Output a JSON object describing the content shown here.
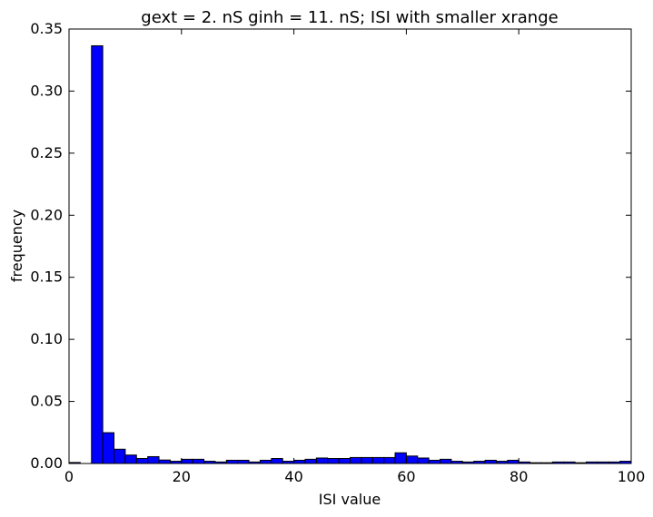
{
  "chart_data": {
    "type": "bar",
    "title": "gext = 2. nS ginh = 11. nS; ISI with smaller xrange",
    "xlabel": "ISI value",
    "ylabel": "frequency",
    "xlim": [
      0,
      100
    ],
    "ylim": [
      0,
      0.35
    ],
    "xticks": [
      0,
      20,
      40,
      60,
      80,
      100
    ],
    "xtick_labels": [
      "0",
      "20",
      "40",
      "60",
      "80",
      "100"
    ],
    "yticks": [
      0,
      0.05,
      0.1,
      0.15,
      0.2,
      0.25,
      0.3,
      0.35
    ],
    "ytick_labels": [
      "0.00",
      "0.05",
      "0.10",
      "0.15",
      "0.20",
      "0.25",
      "0.30",
      "0.35"
    ],
    "bin_edges": [
      0,
      2,
      4,
      6,
      8,
      10,
      12,
      14,
      16,
      18,
      20,
      22,
      24,
      26,
      28,
      30,
      32,
      34,
      36,
      38,
      40,
      42,
      44,
      46,
      48,
      50,
      52,
      54,
      56,
      58,
      60,
      62,
      64,
      66,
      68,
      70,
      72,
      74,
      76,
      78,
      80,
      82,
      84,
      86,
      88,
      90,
      92,
      94,
      96,
      98,
      100
    ],
    "values": [
      0.0008,
      0.0,
      0.3365,
      0.0248,
      0.0115,
      0.0068,
      0.004,
      0.0055,
      0.0028,
      0.0018,
      0.0034,
      0.0034,
      0.0018,
      0.0012,
      0.0026,
      0.0026,
      0.0012,
      0.0026,
      0.004,
      0.0018,
      0.0026,
      0.0034,
      0.0044,
      0.004,
      0.004,
      0.0048,
      0.0048,
      0.0048,
      0.0048,
      0.0086,
      0.006,
      0.0044,
      0.0026,
      0.0034,
      0.0018,
      0.0012,
      0.0018,
      0.0026,
      0.0018,
      0.0026,
      0.0012,
      0.0006,
      0.0006,
      0.0012,
      0.0012,
      0.0006,
      0.0012,
      0.0012,
      0.0012,
      0.0018
    ],
    "bar_color": "#0000ff",
    "edge_color": "#000000",
    "grid": false,
    "legend": false
  }
}
